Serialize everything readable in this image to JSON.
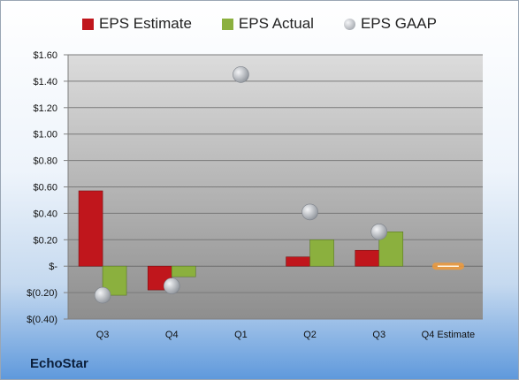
{
  "colors": {
    "estimate": "#c0161c",
    "actual": "#8bb03e",
    "gaap": "#b9bdc3",
    "q4_estimate_marker": "#f09a3a"
  },
  "company": "EchoStar",
  "chart_data": {
    "type": "bar",
    "categories": [
      "Q3",
      "Q4",
      "Q1",
      "Q2",
      "Q3",
      "Q4 Estimate"
    ],
    "series": [
      {
        "name": "EPS Estimate",
        "marker": "bar",
        "values": [
          0.57,
          -0.18,
          null,
          0.07,
          0.12,
          0.0
        ]
      },
      {
        "name": "EPS Actual",
        "marker": "bar",
        "values": [
          -0.22,
          -0.08,
          null,
          0.2,
          0.26,
          null
        ]
      },
      {
        "name": "EPS GAAP",
        "marker": "dot",
        "values": [
          -0.22,
          -0.15,
          1.45,
          0.41,
          0.26,
          null
        ]
      }
    ],
    "ylim": [
      -0.4,
      1.6
    ],
    "yticks": [
      -0.4,
      -0.2,
      0,
      0.2,
      0.4,
      0.6,
      0.8,
      1.0,
      1.2,
      1.4,
      1.6
    ],
    "ytick_labels": [
      "$(0.40)",
      "$(0.20)",
      "$-",
      "$0.20",
      "$0.40",
      "$0.60",
      "$0.80",
      "$1.00",
      "$1.20",
      "$1.40",
      "$1.60"
    ],
    "grid": true,
    "legend": "top-center"
  }
}
